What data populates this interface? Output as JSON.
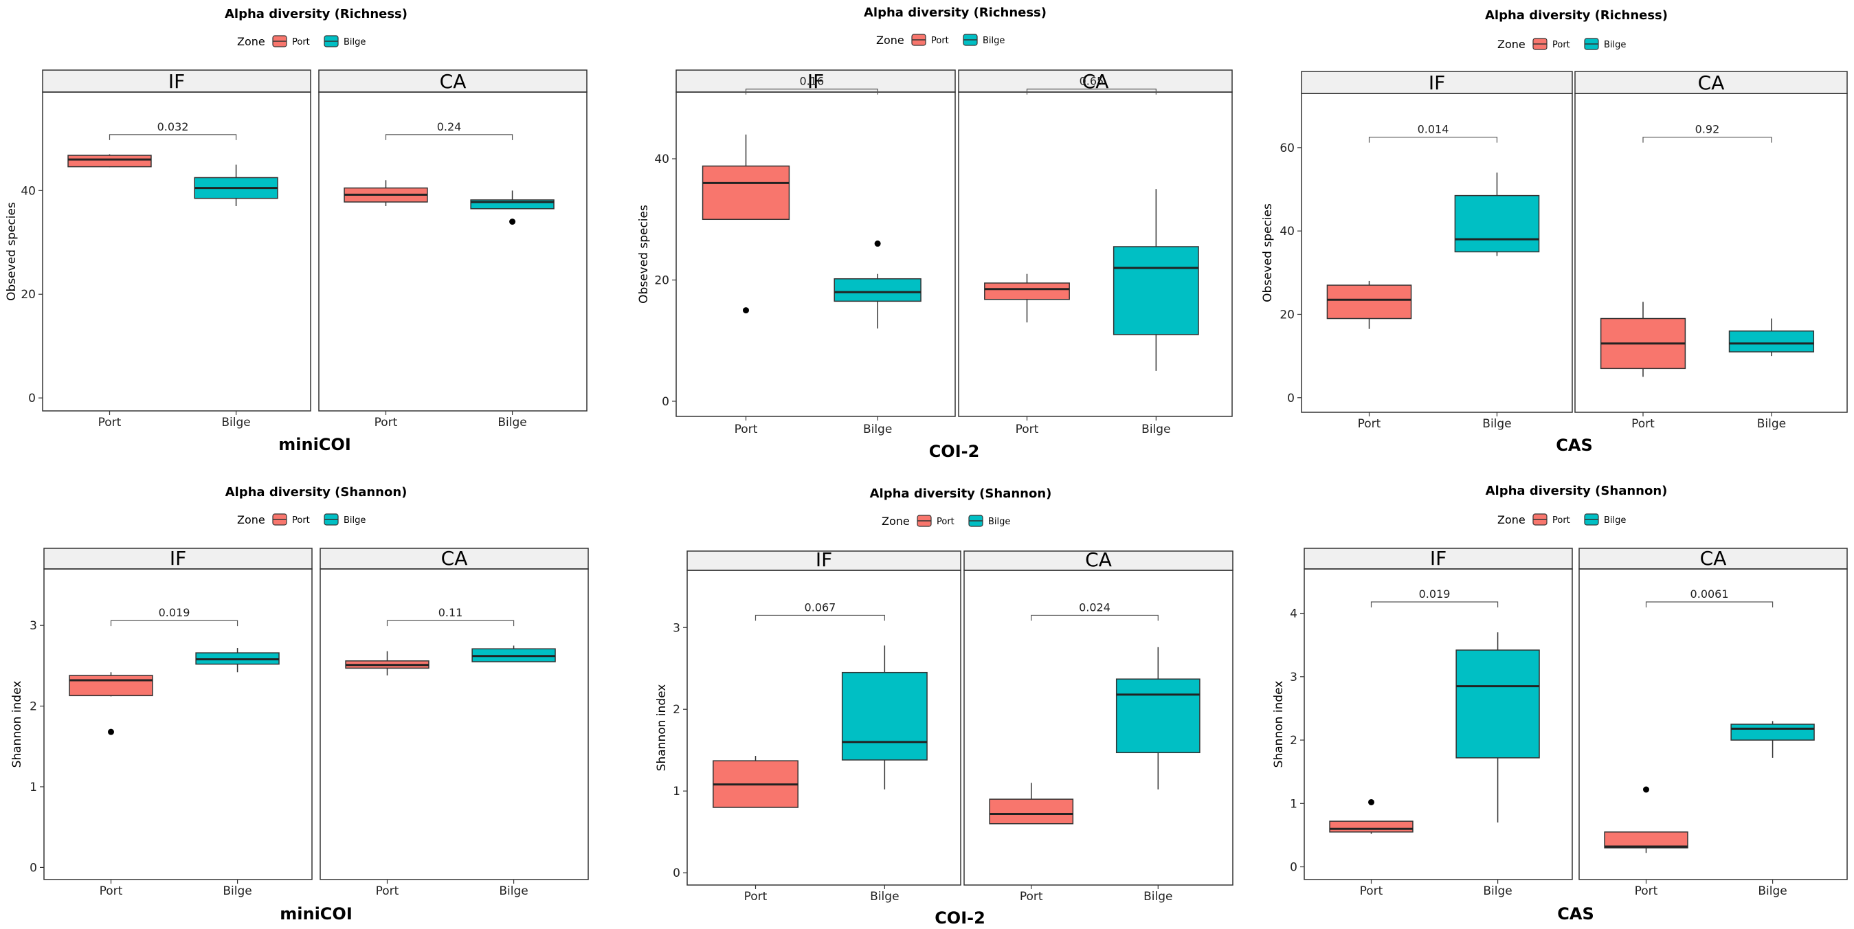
{
  "colors": {
    "port": "#F8766D",
    "bilge": "#00BFC4",
    "strip_bg": "#F0F0F0"
  },
  "legend": {
    "title": "Zone",
    "items": [
      "Port",
      "Bilge"
    ]
  },
  "chart_data": [
    {
      "type": "boxplot",
      "title": "Alpha diversity (Richness)",
      "caption": "miniCOI",
      "ylabel": "Obseved species",
      "ylim": [
        -2.5,
        59
      ],
      "yticks": [
        0,
        20,
        40
      ],
      "categories": [
        "Port",
        "Bilge"
      ],
      "facets": [
        {
          "label": "IF",
          "pvalue": "0.032",
          "bracket_y": 50.8,
          "boxes": [
            {
              "zone": "Port",
              "min": 44.5,
              "q1": 44.6,
              "median": 46.0,
              "q3": 46.8,
              "max": 47.0,
              "outliers": []
            },
            {
              "zone": "Bilge",
              "min": 37.0,
              "q1": 38.5,
              "median": 40.5,
              "q3": 42.5,
              "max": 45.0,
              "outliers": []
            }
          ]
        },
        {
          "label": "CA",
          "pvalue": "0.24",
          "bracket_y": 50.8,
          "boxes": [
            {
              "zone": "Port",
              "min": 37.0,
              "q1": 37.8,
              "median": 39.2,
              "q3": 40.5,
              "max": 42.0,
              "outliers": []
            },
            {
              "zone": "Bilge",
              "min": 36.5,
              "q1": 36.5,
              "median": 37.8,
              "q3": 38.2,
              "max": 40.0,
              "outliers": [
                34.0
              ]
            }
          ]
        }
      ]
    },
    {
      "type": "boxplot",
      "title": "Alpha diversity (Richness)",
      "caption": "COI-2",
      "ylabel": "Obseved species",
      "ylim": [
        -2.5,
        51
      ],
      "yticks": [
        0,
        20,
        40
      ],
      "categories": [
        "Port",
        "Bilge"
      ],
      "facets": [
        {
          "label": "IF",
          "pvalue": "0.16",
          "bracket_y": 51.5,
          "boxes": [
            {
              "zone": "Port",
              "min": 30.0,
              "q1": 30.0,
              "median": 36.0,
              "q3": 38.8,
              "max": 44.0,
              "outliers": [
                15.0
              ]
            },
            {
              "zone": "Bilge",
              "min": 12.0,
              "q1": 16.5,
              "median": 18.0,
              "q3": 20.2,
              "max": 21.0,
              "outliers": [
                26.0
              ]
            }
          ]
        },
        {
          "label": "CA",
          "pvalue": "0.65",
          "bracket_y": 51.5,
          "boxes": [
            {
              "zone": "Port",
              "min": 13.0,
              "q1": 16.8,
              "median": 18.5,
              "q3": 19.5,
              "max": 21.0,
              "outliers": []
            },
            {
              "zone": "Bilge",
              "min": 5.0,
              "q1": 11.0,
              "median": 22.0,
              "q3": 25.5,
              "max": 35.0,
              "outliers": []
            }
          ]
        }
      ]
    },
    {
      "type": "boxplot",
      "title": "Alpha diversity (Richness)",
      "caption": "CAS",
      "ylabel": "Obseved species",
      "ylim": [
        -3.5,
        73
      ],
      "yticks": [
        0,
        20,
        40,
        60
      ],
      "categories": [
        "Port",
        "Bilge"
      ],
      "facets": [
        {
          "label": "IF",
          "pvalue": "0.014",
          "bracket_y": 62.5,
          "boxes": [
            {
              "zone": "Port",
              "min": 16.5,
              "q1": 19.0,
              "median": 23.5,
              "q3": 27.0,
              "max": 28.0,
              "outliers": []
            },
            {
              "zone": "Bilge",
              "min": 34.0,
              "q1": 35.0,
              "median": 38.0,
              "q3": 48.5,
              "max": 54.0,
              "outliers": []
            }
          ]
        },
        {
          "label": "CA",
          "pvalue": "0.92",
          "bracket_y": 62.5,
          "boxes": [
            {
              "zone": "Port",
              "min": 5.0,
              "q1": 7.0,
              "median": 13.0,
              "q3": 19.0,
              "max": 23.0,
              "outliers": []
            },
            {
              "zone": "Bilge",
              "min": 10.0,
              "q1": 11.0,
              "median": 13.0,
              "q3": 16.0,
              "max": 19.0,
              "outliers": []
            }
          ]
        }
      ]
    },
    {
      "type": "boxplot",
      "title": "Alpha diversity (Shannon)",
      "caption": "miniCOI",
      "ylabel": "Shannon index",
      "ylim": [
        -0.15,
        3.7
      ],
      "yticks": [
        0,
        1,
        2,
        3
      ],
      "categories": [
        "Port",
        "Bilge"
      ],
      "facets": [
        {
          "label": "IF",
          "pvalue": "0.019",
          "bracket_y": 3.06,
          "boxes": [
            {
              "zone": "Port",
              "min": 2.12,
              "q1": 2.13,
              "median": 2.32,
              "q3": 2.38,
              "max": 2.42,
              "outliers": [
                1.68
              ]
            },
            {
              "zone": "Bilge",
              "min": 2.42,
              "q1": 2.52,
              "median": 2.58,
              "q3": 2.66,
              "max": 2.72,
              "outliers": []
            }
          ]
        },
        {
          "label": "CA",
          "pvalue": "0.11",
          "bracket_y": 3.06,
          "boxes": [
            {
              "zone": "Port",
              "min": 2.38,
              "q1": 2.47,
              "median": 2.51,
              "q3": 2.56,
              "max": 2.68,
              "outliers": []
            },
            {
              "zone": "Bilge",
              "min": 2.55,
              "q1": 2.55,
              "median": 2.62,
              "q3": 2.71,
              "max": 2.75,
              "outliers": []
            }
          ]
        }
      ]
    },
    {
      "type": "boxplot",
      "title": "Alpha diversity (Shannon)",
      "caption": "COI-2",
      "ylabel": "Shannon index",
      "ylim": [
        -0.15,
        3.7
      ],
      "yticks": [
        0,
        1,
        2,
        3
      ],
      "categories": [
        "Port",
        "Bilge"
      ],
      "facets": [
        {
          "label": "IF",
          "pvalue": "0.067",
          "bracket_y": 3.15,
          "boxes": [
            {
              "zone": "Port",
              "min": 0.8,
              "q1": 0.8,
              "median": 1.08,
              "q3": 1.37,
              "max": 1.43,
              "outliers": []
            },
            {
              "zone": "Bilge",
              "min": 1.02,
              "q1": 1.38,
              "median": 1.6,
              "q3": 2.45,
              "max": 2.78,
              "outliers": []
            }
          ]
        },
        {
          "label": "CA",
          "pvalue": "0.024",
          "bracket_y": 3.15,
          "boxes": [
            {
              "zone": "Port",
              "min": 0.6,
              "q1": 0.6,
              "median": 0.72,
              "q3": 0.9,
              "max": 1.1,
              "outliers": []
            },
            {
              "zone": "Bilge",
              "min": 1.02,
              "q1": 1.47,
              "median": 2.18,
              "q3": 2.37,
              "max": 2.76,
              "outliers": []
            }
          ]
        }
      ]
    },
    {
      "type": "boxplot",
      "title": "Alpha diversity (Shannon)",
      "caption": "CAS",
      "ylabel": "Shannon index",
      "ylim": [
        -0.2,
        4.7
      ],
      "yticks": [
        0,
        1,
        2,
        3,
        4
      ],
      "categories": [
        "Port",
        "Bilge"
      ],
      "facets": [
        {
          "label": "IF",
          "pvalue": "0.019",
          "bracket_y": 4.18,
          "boxes": [
            {
              "zone": "Port",
              "min": 0.52,
              "q1": 0.55,
              "median": 0.6,
              "q3": 0.72,
              "max": 0.72,
              "outliers": [
                1.02
              ]
            },
            {
              "zone": "Bilge",
              "min": 0.7,
              "q1": 1.72,
              "median": 2.85,
              "q3": 3.42,
              "max": 3.7,
              "outliers": []
            }
          ]
        },
        {
          "label": "CA",
          "pvalue": "0.0061",
          "bracket_y": 4.18,
          "boxes": [
            {
              "zone": "Port",
              "min": 0.22,
              "q1": 0.3,
              "median": 0.32,
              "q3": 0.55,
              "max": 0.55,
              "outliers": [
                1.22
              ]
            },
            {
              "zone": "Bilge",
              "min": 1.72,
              "q1": 2.0,
              "median": 2.18,
              "q3": 2.25,
              "max": 2.3,
              "outliers": []
            }
          ]
        }
      ]
    }
  ]
}
